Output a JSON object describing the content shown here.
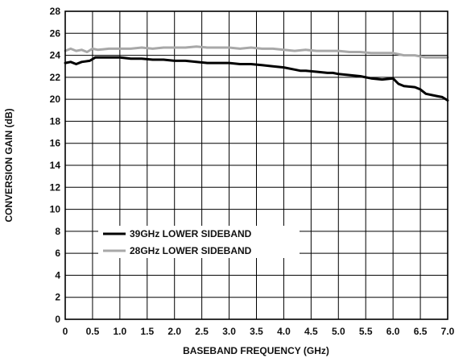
{
  "chart_data": {
    "type": "line",
    "xlabel": "BASEBAND FREQUENCY (GHz)",
    "ylabel": "CONVERSION GAIN (dB)",
    "xlim": [
      0,
      7.0
    ],
    "ylim": [
      0,
      28
    ],
    "x_ticks": [
      0,
      0.5,
      1.0,
      1.5,
      2.0,
      2.5,
      3.0,
      3.5,
      4.0,
      4.5,
      5.0,
      5.5,
      6.0,
      6.5,
      7.0
    ],
    "x_tick_labels": [
      "0",
      "0.5",
      "1.0",
      "1.5",
      "2.0",
      "2.5",
      "3.0",
      "3.5",
      "4.0",
      "4.5",
      "5.0",
      "5.5",
      "6.0",
      "6.5",
      "7.0"
    ],
    "y_ticks": [
      0,
      2,
      4,
      6,
      8,
      10,
      12,
      14,
      16,
      18,
      20,
      22,
      24,
      26,
      28
    ],
    "y_tick_labels": [
      "0",
      "2",
      "4",
      "6",
      "8",
      "10",
      "12",
      "14",
      "16",
      "18",
      "20",
      "22",
      "24",
      "26",
      "28"
    ],
    "grid": true,
    "legend_position": "lower-left",
    "series": [
      {
        "name": "39GHz LOWER SIDEBAND",
        "color": "#000000",
        "x": [
          0,
          0.1,
          0.2,
          0.3,
          0.45,
          0.55,
          0.65,
          0.8,
          1.0,
          1.2,
          1.4,
          1.6,
          1.8,
          2.0,
          2.2,
          2.4,
          2.6,
          2.8,
          3.0,
          3.2,
          3.4,
          3.6,
          3.8,
          4.0,
          4.2,
          4.3,
          4.4,
          4.6,
          4.8,
          4.9,
          5.0,
          5.2,
          5.4,
          5.5,
          5.6,
          5.8,
          6.0,
          6.1,
          6.2,
          6.4,
          6.5,
          6.6,
          6.8,
          6.9,
          7.0
        ],
        "y": [
          23.3,
          23.4,
          23.2,
          23.4,
          23.5,
          23.8,
          23.8,
          23.8,
          23.8,
          23.7,
          23.7,
          23.6,
          23.6,
          23.5,
          23.5,
          23.4,
          23.3,
          23.3,
          23.3,
          23.2,
          23.2,
          23.1,
          23.0,
          22.9,
          22.7,
          22.6,
          22.6,
          22.5,
          22.4,
          22.4,
          22.3,
          22.2,
          22.1,
          22.0,
          21.9,
          21.8,
          21.9,
          21.4,
          21.2,
          21.1,
          20.9,
          20.5,
          20.3,
          20.2,
          19.9
        ]
      },
      {
        "name": "28GHz LOWER SIDEBAND",
        "color": "#a8a8a8",
        "x": [
          0,
          0.1,
          0.2,
          0.3,
          0.4,
          0.5,
          0.6,
          0.8,
          1.0,
          1.2,
          1.4,
          1.6,
          1.8,
          2.0,
          2.2,
          2.4,
          2.6,
          2.8,
          3.0,
          3.2,
          3.4,
          3.6,
          3.8,
          4.0,
          4.2,
          4.4,
          4.6,
          4.8,
          5.0,
          5.2,
          5.4,
          5.6,
          5.8,
          6.0,
          6.2,
          6.4,
          6.6,
          6.8,
          7.0
        ],
        "y": [
          24.4,
          24.6,
          24.4,
          24.5,
          24.3,
          24.6,
          24.5,
          24.6,
          24.6,
          24.6,
          24.7,
          24.6,
          24.7,
          24.7,
          24.7,
          24.8,
          24.7,
          24.7,
          24.7,
          24.6,
          24.7,
          24.6,
          24.6,
          24.5,
          24.4,
          24.5,
          24.4,
          24.4,
          24.4,
          24.3,
          24.3,
          24.2,
          24.2,
          24.2,
          24.0,
          24.0,
          23.8,
          23.8,
          23.8
        ]
      }
    ]
  }
}
